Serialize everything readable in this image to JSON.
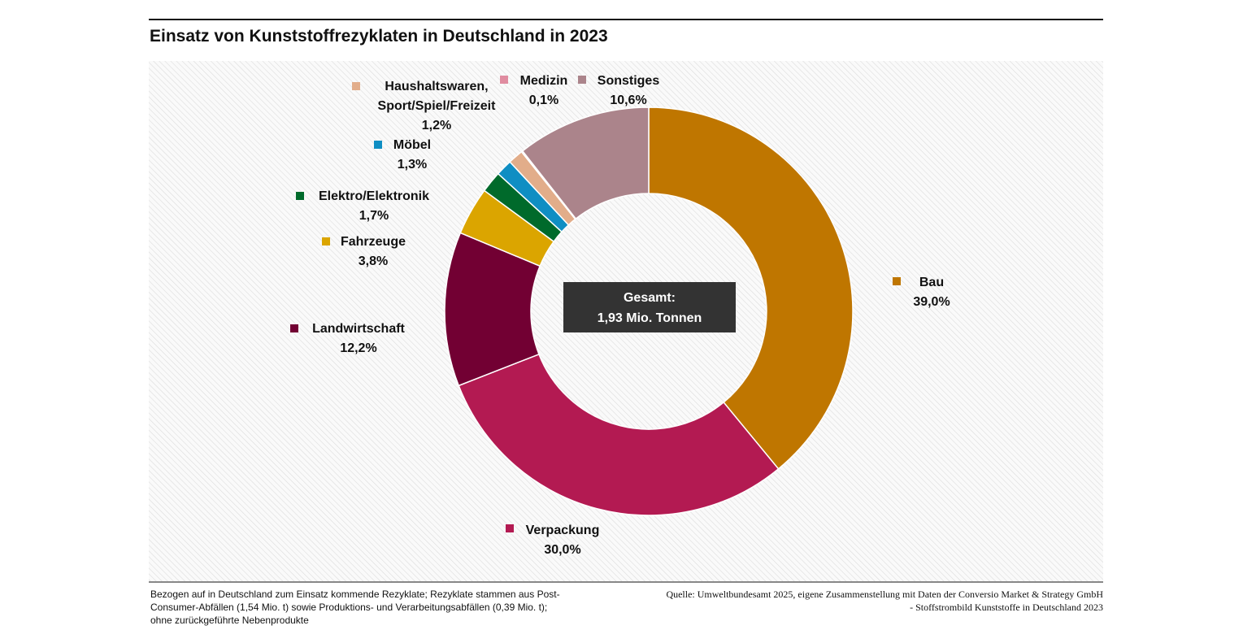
{
  "chart_data": {
    "type": "donut",
    "title": "Einsatz von Kunststoffrezyklaten in Deutschland in 2023",
    "categories": [
      "Bau",
      "Verpackung",
      "Landwirtschaft",
      "Fahrzeuge",
      "Elektro/Elektronik",
      "Möbel",
      "Haushaltswaren, Sport/Spiel/Freizeit",
      "Medizin",
      "Sonstiges"
    ],
    "values": [
      39.0,
      30.0,
      12.2,
      3.8,
      1.7,
      1.3,
      1.2,
      0.1,
      10.6
    ],
    "value_labels": [
      "39,0%",
      "30,0%",
      "12,2%",
      "3,8%",
      "1,7%",
      "1,3%",
      "1,2%",
      "0,1%",
      "10,6%"
    ],
    "colors": [
      "#bf7600",
      "#b31a52",
      "#720033",
      "#dba500",
      "#006a2b",
      "#0f8ec3",
      "#e2ad8a",
      "#e08ca0",
      "#ab848b"
    ],
    "center_label": [
      "Gesamt:",
      "1,93 Mio. Tonnen"
    ],
    "note": "Bezogen auf in Deutschland zum Einsatz kommende Rezyklate; Rezyklate stammen aus Post-Consumer-Abfällen (1,54 Mio. t) sowie Produktions- und Verarbeitungsabfällen (0,39 Mio. t); ohne zurückgeführte Nebenprodukte",
    "source": "Quelle: Umweltbundesamt 2025, eigene Zusammenstellung mit Daten der Conversio Market & Strategy GmbH - Stoffstrombild Kunststoffe in Deutschland 2023"
  }
}
